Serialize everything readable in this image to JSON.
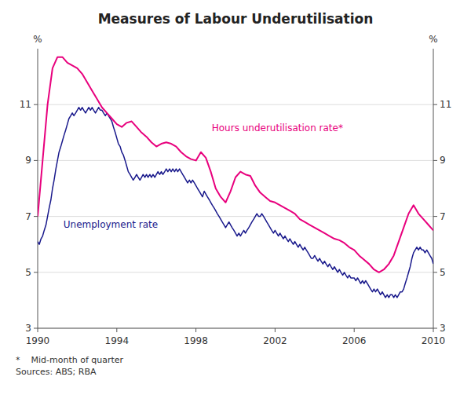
{
  "chart_data": {
    "type": "line",
    "title": "Measures of Labour Underutilisation",
    "ylabel": "%",
    "y2label": "%",
    "footnote": "*    Mid-month of quarter\nSources: ABS; RBA",
    "xlim": [
      1990.0,
      2010.0
    ],
    "xticks": [
      1990,
      1994,
      1998,
      2002,
      2006,
      2010
    ],
    "ylim": [
      3,
      13
    ],
    "yticks": [
      3,
      5,
      7,
      9,
      11
    ],
    "y2lim": [
      3,
      13
    ],
    "y2ticks": [
      3,
      5,
      7,
      9,
      11
    ],
    "grid": true,
    "series": [
      {
        "name": "Unemployment rate",
        "color": "#1a1a8c",
        "x": [
          1990.0,
          1990.08,
          1990.17,
          1990.25,
          1990.33,
          1990.42,
          1990.5,
          1990.58,
          1990.67,
          1990.75,
          1990.83,
          1990.92,
          1991.0,
          1991.08,
          1991.17,
          1991.25,
          1991.33,
          1991.42,
          1991.5,
          1991.58,
          1991.67,
          1991.75,
          1991.83,
          1991.92,
          1992.0,
          1992.08,
          1992.17,
          1992.25,
          1992.33,
          1992.42,
          1992.5,
          1992.58,
          1992.67,
          1992.75,
          1992.83,
          1992.92,
          1993.0,
          1993.08,
          1993.17,
          1993.25,
          1993.33,
          1993.42,
          1993.5,
          1993.58,
          1993.67,
          1993.75,
          1993.83,
          1993.92,
          1994.0,
          1994.08,
          1994.17,
          1994.25,
          1994.33,
          1994.42,
          1994.5,
          1994.58,
          1994.67,
          1994.75,
          1994.83,
          1994.92,
          1995.0,
          1995.08,
          1995.17,
          1995.25,
          1995.33,
          1995.42,
          1995.5,
          1995.58,
          1995.67,
          1995.75,
          1995.83,
          1995.92,
          1996.0,
          1996.08,
          1996.17,
          1996.25,
          1996.33,
          1996.42,
          1996.5,
          1996.58,
          1996.67,
          1996.75,
          1996.83,
          1996.92,
          1997.0,
          1997.08,
          1997.17,
          1997.25,
          1997.33,
          1997.42,
          1997.5,
          1997.58,
          1997.67,
          1997.75,
          1997.83,
          1997.92,
          1998.0,
          1998.08,
          1998.17,
          1998.25,
          1998.33,
          1998.42,
          1998.5,
          1998.58,
          1998.67,
          1998.75,
          1998.83,
          1998.92,
          1999.0,
          1999.08,
          1999.17,
          1999.25,
          1999.33,
          1999.42,
          1999.5,
          1999.58,
          1999.67,
          1999.75,
          1999.83,
          1999.92,
          2000.0,
          2000.08,
          2000.17,
          2000.25,
          2000.33,
          2000.42,
          2000.5,
          2000.58,
          2000.67,
          2000.75,
          2000.83,
          2000.92,
          2001.0,
          2001.08,
          2001.17,
          2001.25,
          2001.33,
          2001.42,
          2001.5,
          2001.58,
          2001.67,
          2001.75,
          2001.83,
          2001.92,
          2002.0,
          2002.08,
          2002.17,
          2002.25,
          2002.33,
          2002.42,
          2002.5,
          2002.58,
          2002.67,
          2002.75,
          2002.83,
          2002.92,
          2003.0,
          2003.08,
          2003.17,
          2003.25,
          2003.33,
          2003.42,
          2003.5,
          2003.58,
          2003.67,
          2003.75,
          2003.83,
          2003.92,
          2004.0,
          2004.08,
          2004.17,
          2004.25,
          2004.33,
          2004.42,
          2004.5,
          2004.58,
          2004.67,
          2004.75,
          2004.83,
          2004.92,
          2005.0,
          2005.08,
          2005.17,
          2005.25,
          2005.33,
          2005.42,
          2005.5,
          2005.58,
          2005.67,
          2005.75,
          2005.83,
          2005.92,
          2006.0,
          2006.08,
          2006.17,
          2006.25,
          2006.33,
          2006.42,
          2006.5,
          2006.58,
          2006.67,
          2006.75,
          2006.83,
          2006.92,
          2007.0,
          2007.08,
          2007.17,
          2007.25,
          2007.33,
          2007.42,
          2007.5,
          2007.58,
          2007.67,
          2007.75,
          2007.83,
          2007.92,
          2008.0,
          2008.08,
          2008.17,
          2008.25,
          2008.33,
          2008.42,
          2008.5,
          2008.58,
          2008.67,
          2008.75,
          2008.83,
          2008.92,
          2009.0,
          2009.08,
          2009.17,
          2009.25,
          2009.33,
          2009.42,
          2009.5,
          2009.58,
          2009.67,
          2009.75,
          2009.83,
          2009.92,
          2010.0
        ],
        "values": [
          6.1,
          6.0,
          6.2,
          6.3,
          6.5,
          6.7,
          7.0,
          7.3,
          7.6,
          8.0,
          8.3,
          8.7,
          9.0,
          9.3,
          9.5,
          9.7,
          9.9,
          10.1,
          10.3,
          10.5,
          10.6,
          10.7,
          10.6,
          10.7,
          10.8,
          10.9,
          10.8,
          10.9,
          10.8,
          10.7,
          10.8,
          10.9,
          10.8,
          10.9,
          10.8,
          10.7,
          10.8,
          10.9,
          10.8,
          10.8,
          10.7,
          10.6,
          10.7,
          10.6,
          10.5,
          10.4,
          10.2,
          10.0,
          9.8,
          9.6,
          9.5,
          9.3,
          9.2,
          9.0,
          8.8,
          8.6,
          8.5,
          8.4,
          8.3,
          8.4,
          8.5,
          8.4,
          8.3,
          8.4,
          8.5,
          8.4,
          8.5,
          8.4,
          8.5,
          8.4,
          8.5,
          8.4,
          8.5,
          8.6,
          8.5,
          8.6,
          8.5,
          8.6,
          8.7,
          8.6,
          8.7,
          8.6,
          8.7,
          8.6,
          8.7,
          8.6,
          8.7,
          8.6,
          8.5,
          8.4,
          8.3,
          8.2,
          8.3,
          8.2,
          8.3,
          8.2,
          8.1,
          8.0,
          7.9,
          7.8,
          7.7,
          7.9,
          7.8,
          7.7,
          7.6,
          7.5,
          7.4,
          7.3,
          7.2,
          7.1,
          7.0,
          6.9,
          6.8,
          6.7,
          6.6,
          6.7,
          6.8,
          6.7,
          6.6,
          6.5,
          6.4,
          6.3,
          6.4,
          6.3,
          6.4,
          6.5,
          6.4,
          6.5,
          6.6,
          6.7,
          6.8,
          6.9,
          7.0,
          7.1,
          7.0,
          7.0,
          7.1,
          7.0,
          6.9,
          6.8,
          6.7,
          6.6,
          6.5,
          6.4,
          6.5,
          6.4,
          6.3,
          6.4,
          6.3,
          6.2,
          6.3,
          6.2,
          6.1,
          6.2,
          6.1,
          6.0,
          6.1,
          6.0,
          5.9,
          6.0,
          5.9,
          5.8,
          5.9,
          5.8,
          5.7,
          5.6,
          5.5,
          5.5,
          5.6,
          5.5,
          5.4,
          5.5,
          5.4,
          5.3,
          5.4,
          5.3,
          5.2,
          5.3,
          5.2,
          5.1,
          5.2,
          5.1,
          5.0,
          5.1,
          5.0,
          4.9,
          5.0,
          4.9,
          4.8,
          4.9,
          4.8,
          4.8,
          4.8,
          4.7,
          4.8,
          4.7,
          4.6,
          4.7,
          4.6,
          4.7,
          4.6,
          4.5,
          4.4,
          4.3,
          4.4,
          4.3,
          4.4,
          4.3,
          4.2,
          4.3,
          4.2,
          4.1,
          4.2,
          4.1,
          4.2,
          4.2,
          4.1,
          4.2,
          4.1,
          4.2,
          4.3,
          4.3,
          4.4,
          4.6,
          4.8,
          5.0,
          5.2,
          5.5,
          5.7,
          5.8,
          5.9,
          5.8,
          5.9,
          5.8,
          5.8,
          5.7,
          5.8,
          5.7,
          5.6,
          5.5,
          5.3
        ]
      },
      {
        "name": "Hours underutilisation rate*",
        "color": "#e8007d",
        "x": [
          1990.0,
          1990.25,
          1990.5,
          1990.75,
          1991.0,
          1991.25,
          1991.5,
          1991.75,
          1992.0,
          1992.25,
          1992.5,
          1992.75,
          1993.0,
          1993.25,
          1993.5,
          1993.75,
          1994.0,
          1994.25,
          1994.5,
          1994.75,
          1995.0,
          1995.25,
          1995.5,
          1995.75,
          1996.0,
          1996.25,
          1996.5,
          1996.75,
          1997.0,
          1997.25,
          1997.5,
          1997.75,
          1998.0,
          1998.25,
          1998.5,
          1998.75,
          1999.0,
          1999.25,
          1999.5,
          1999.75,
          2000.0,
          2000.25,
          2000.5,
          2000.75,
          2001.0,
          2001.25,
          2001.5,
          2001.75,
          2002.0,
          2002.25,
          2002.5,
          2002.75,
          2003.0,
          2003.25,
          2003.5,
          2003.75,
          2004.0,
          2004.25,
          2004.5,
          2004.75,
          2005.0,
          2005.25,
          2005.5,
          2005.75,
          2006.0,
          2006.25,
          2006.5,
          2006.75,
          2007.0,
          2007.25,
          2007.5,
          2007.75,
          2008.0,
          2008.25,
          2008.5,
          2008.75,
          2009.0,
          2009.25,
          2009.5,
          2009.75,
          2010.0
        ],
        "values": [
          7.0,
          9.0,
          11.0,
          12.3,
          12.7,
          12.7,
          12.5,
          12.4,
          12.3,
          12.1,
          11.8,
          11.5,
          11.2,
          10.9,
          10.7,
          10.5,
          10.3,
          10.2,
          10.35,
          10.4,
          10.2,
          10.0,
          9.85,
          9.65,
          9.5,
          9.6,
          9.65,
          9.6,
          9.5,
          9.3,
          9.15,
          9.05,
          9.0,
          9.3,
          9.1,
          8.6,
          8.0,
          7.7,
          7.5,
          7.9,
          8.4,
          8.6,
          8.5,
          8.45,
          8.1,
          7.85,
          7.7,
          7.55,
          7.5,
          7.4,
          7.3,
          7.2,
          7.1,
          6.9,
          6.8,
          6.7,
          6.6,
          6.5,
          6.4,
          6.3,
          6.2,
          6.15,
          6.05,
          5.9,
          5.8,
          5.6,
          5.45,
          5.3,
          5.1,
          5.0,
          5.1,
          5.3,
          5.6,
          6.1,
          6.6,
          7.1,
          7.4,
          7.1,
          6.9,
          6.7,
          6.5
        ]
      }
    ]
  }
}
